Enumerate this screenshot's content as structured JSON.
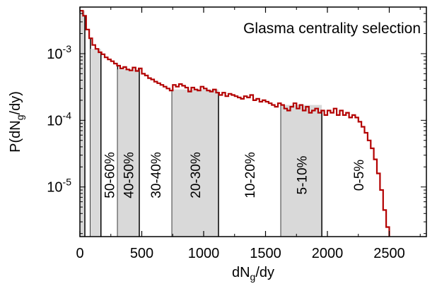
{
  "chart_data": {
    "type": "histogram",
    "title": "Glasma centrality selection",
    "xlabel": {
      "base": "dN",
      "sub": "g",
      "rest": "/dy"
    },
    "ylabel": {
      "pre": "P(dN",
      "sub": "g",
      "rest": "/dy)"
    },
    "xlim": [
      0,
      2800
    ],
    "ylim": [
      1.8e-06,
      0.005
    ],
    "y_scale": "log",
    "x_ticks": [
      {
        "value": 0,
        "label": "0"
      },
      {
        "value": 500,
        "label": "500"
      },
      {
        "value": 1000,
        "label": "1000"
      },
      {
        "value": 1500,
        "label": "1500"
      },
      {
        "value": 2000,
        "label": "2000"
      },
      {
        "value": 2500,
        "label": "2500"
      }
    ],
    "y_ticks": [
      {
        "value": 1e-05,
        "base": "10",
        "exp": "-5"
      },
      {
        "value": 0.0001,
        "base": "10",
        "exp": "-4"
      },
      {
        "value": 0.001,
        "base": "10",
        "exp": "-3"
      }
    ],
    "series": [
      {
        "color": "#b30000",
        "bin_width": 25,
        "x": [
          0,
          25,
          50,
          75,
          100,
          125,
          150,
          175,
          200,
          225,
          250,
          275,
          300,
          325,
          350,
          375,
          400,
          425,
          450,
          475,
          500,
          525,
          550,
          575,
          600,
          625,
          650,
          675,
          700,
          725,
          750,
          775,
          800,
          825,
          850,
          875,
          900,
          925,
          950,
          975,
          1000,
          1025,
          1050,
          1075,
          1100,
          1125,
          1150,
          1175,
          1200,
          1225,
          1250,
          1275,
          1300,
          1325,
          1350,
          1375,
          1400,
          1425,
          1450,
          1475,
          1500,
          1525,
          1550,
          1575,
          1600,
          1625,
          1650,
          1675,
          1700,
          1725,
          1750,
          1775,
          1800,
          1825,
          1850,
          1875,
          1900,
          1925,
          1950,
          1975,
          2000,
          2025,
          2050,
          2075,
          2100,
          2125,
          2150,
          2175,
          2200,
          2225,
          2250,
          2275,
          2300,
          2325,
          2350,
          2375,
          2400,
          2425,
          2450,
          2475,
          2500
        ],
        "values": [
          0.0044,
          0.0037,
          0.0023,
          0.0017,
          0.00135,
          0.00118,
          0.00105,
          0.00098,
          0.00088,
          0.00082,
          0.00077,
          0.00071,
          0.00066,
          0.0006,
          0.00063,
          0.00058,
          0.00056,
          0.00062,
          0.00055,
          0.0006,
          0.0005,
          0.00047,
          0.00043,
          0.00041,
          0.00038,
          0.00036,
          0.00034,
          0.00032,
          0.0003,
          0.00028,
          0.00034,
          0.00032,
          0.00035,
          0.00033,
          0.00031,
          0.00027,
          0.00031,
          0.00029,
          0.00028,
          0.00032,
          0.0003,
          0.00028,
          0.00027,
          0.00029,
          0.00026,
          0.00024,
          0.00026,
          0.00023,
          0.00025,
          0.00024,
          0.00023,
          0.00022,
          0.00021,
          0.00023,
          0.00022,
          0.00024,
          0.0002,
          0.00021,
          0.00019,
          0.0002,
          0.00019,
          0.00018,
          0.00017,
          0.00016,
          0.00018,
          0.00017,
          0.00015,
          0.00014,
          0.00016,
          0.00018,
          0.00015,
          0.00017,
          0.00014,
          0.00016,
          0.00013,
          0.00014,
          0.00015,
          0.00013,
          0.00014,
          0.00012,
          0.00014,
          0.00013,
          0.00015,
          0.00012,
          0.00014,
          0.00012,
          0.00013,
          0.00011,
          0.00012,
          0.00011,
          9.5e-05,
          8e-05,
          6.5e-05,
          5e-05,
          3.8e-05,
          2.6e-05,
          1.6e-05,
          9e-06,
          4.5e-06,
          2.5e-06,
          1.5e-06
        ]
      }
    ],
    "centrality_bins": [
      {
        "x0": 0,
        "x1": 40,
        "label": "",
        "shaded": true
      },
      {
        "x0": 40,
        "x1": 85,
        "label": "",
        "shaded": false
      },
      {
        "x0": 85,
        "x1": 170,
        "label": "",
        "shaded": true
      },
      {
        "x0": 170,
        "x1": 305,
        "label": "50-60%",
        "shaded": false
      },
      {
        "x0": 305,
        "x1": 480,
        "label": "40-50%",
        "shaded": true
      },
      {
        "x0": 480,
        "x1": 745,
        "label": "30-40%",
        "shaded": false
      },
      {
        "x0": 745,
        "x1": 1120,
        "label": "20-30%",
        "shaded": true
      },
      {
        "x0": 1120,
        "x1": 1625,
        "label": "10-20%",
        "shaded": false
      },
      {
        "x0": 1625,
        "x1": 1955,
        "label": "5-10%",
        "shaded": true
      },
      {
        "x0": 1955,
        "x1": 2550,
        "label": "0-5%",
        "shaded": false
      }
    ],
    "grid": false,
    "legend": "none",
    "colors": {
      "line": "#b30000",
      "shade": "#d9d9d9",
      "bin_edge": "#000000"
    }
  }
}
